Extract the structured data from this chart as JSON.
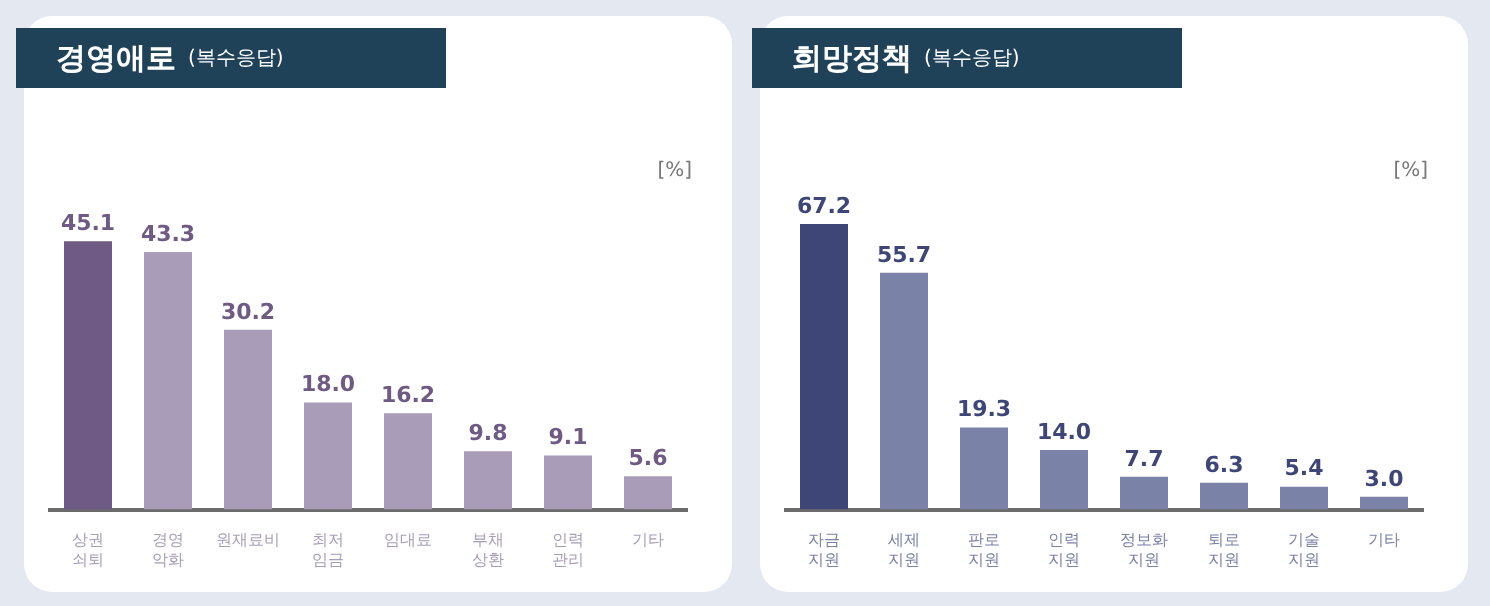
{
  "chart_data": [
    {
      "type": "bar",
      "title": "경영애로 (복수응답)",
      "ylabel": "[%]",
      "categories": [
        "상권 쇠퇴",
        "경영 악화",
        "원재료비",
        "최저 임금",
        "임대료",
        "부채 상환",
        "인력 관리",
        "기타"
      ],
      "values": [
        45.1,
        43.3,
        30.2,
        18.0,
        16.2,
        9.8,
        9.1,
        5.6
      ],
      "colors": [
        "#6e5a85",
        "#a99cb8",
        "#a99cb8",
        "#a99cb8",
        "#a99cb8",
        "#a99cb8",
        "#a99cb8",
        "#a99cb8"
      ],
      "value_labels": [
        "45.1",
        "43.3",
        "30.2",
        "18.0",
        "16.2",
        "9.8",
        "9.1",
        "5.6"
      ],
      "tick_labels": "x"
    },
    {
      "type": "bar",
      "title": "희망정책 (복수응답)",
      "ylabel": "[%]",
      "categories": [
        "자금 지원",
        "세제 지원",
        "판로 지원",
        "인력 지원",
        "정보화 지원",
        "퇴로 지원",
        "기술 지원",
        "기타"
      ],
      "values": [
        67.2,
        55.7,
        19.3,
        14.0,
        7.7,
        6.3,
        5.4,
        3.0
      ],
      "colors": [
        "#3d4677",
        "#7a82a8",
        "#7a82a8",
        "#7a82a8",
        "#7a82a8",
        "#7a82a8",
        "#7a82a8",
        "#7a82a8"
      ],
      "value_labels": [
        "67.2",
        "55.7",
        "19.3",
        "14.0",
        "7.7",
        "6.3",
        "5.4",
        "3.0"
      ],
      "tick_labels": "x"
    }
  ]
}
